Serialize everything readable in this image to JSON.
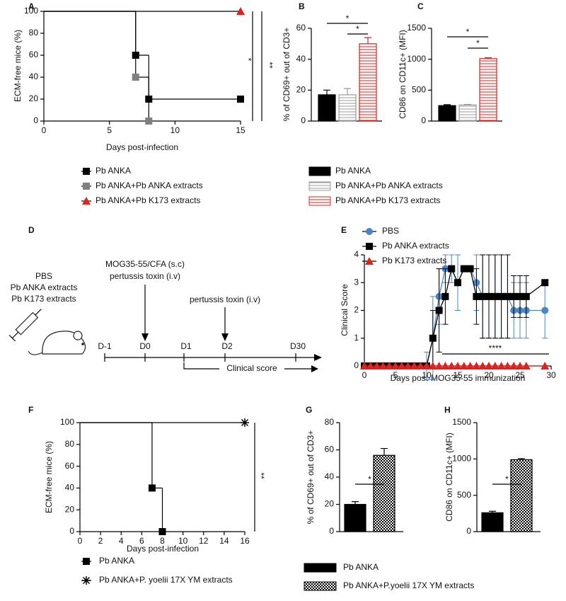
{
  "chart_data": [
    {
      "panel": "A",
      "type": "step",
      "xlabel": "Days post-infection",
      "ylabel": "ECM-free mice (%)",
      "xlim": [
        0,
        15
      ],
      "xticks": [
        0,
        5,
        10,
        15
      ],
      "ylim": [
        0,
        100
      ],
      "yticks": [
        0,
        20,
        40,
        60,
        80,
        100
      ],
      "series": [
        {
          "name": "Pb ANKA",
          "color": "#000000",
          "marker": "square",
          "x": [
            0,
            7,
            8,
            15
          ],
          "values": [
            100,
            60,
            20,
            20
          ]
        },
        {
          "name": "Pb ANKA+Pb ANKA extracts",
          "color": "#808080",
          "marker": "square",
          "x": [
            0,
            7,
            8
          ],
          "values": [
            100,
            40,
            0
          ]
        },
        {
          "name": "Pb ANKA+Pb K173 extracts",
          "color": "#e0211d",
          "marker": "triangle",
          "x": [
            0,
            15
          ],
          "values": [
            100,
            100
          ]
        }
      ],
      "annotations": [
        "*",
        "**"
      ]
    },
    {
      "panel": "B",
      "type": "bar",
      "ylabel": "% of CD69+ out of CD3+",
      "ylim": [
        0,
        60
      ],
      "yticks": [
        0,
        20,
        40,
        60
      ],
      "series": [
        {
          "name": "Pb ANKA",
          "color": "#000000",
          "pattern": "solid",
          "values": [
            17
          ],
          "errors": [
            3
          ]
        },
        {
          "name": "Pb ANKA+Pb ANKA extracts",
          "color": "#999999",
          "pattern": "hlines",
          "values": [
            17
          ],
          "errors": [
            4
          ]
        },
        {
          "name": "Pb ANKA+Pb K173 extracts",
          "color": "#e0211d",
          "pattern": "hlines",
          "values": [
            50
          ],
          "errors": [
            4
          ]
        }
      ],
      "annotations": [
        "*",
        "*"
      ]
    },
    {
      "panel": "C",
      "type": "bar",
      "ylabel": "CD86 on CD11c+ (MFI)",
      "ylim": [
        0,
        1500
      ],
      "yticks": [
        0,
        500,
        1000,
        1500
      ],
      "series": [
        {
          "color": "#000000",
          "pattern": "solid",
          "values": [
            250
          ],
          "errors": [
            15
          ]
        },
        {
          "color": "#999999",
          "pattern": "hlines",
          "values": [
            260
          ],
          "errors": [
            10
          ]
        },
        {
          "color": "#e0211d",
          "pattern": "hlines",
          "values": [
            1010
          ],
          "errors": [
            15
          ]
        }
      ],
      "annotations": [
        "*",
        "*"
      ]
    },
    {
      "panel": "E",
      "type": "line",
      "xlabel": "Days post-MOG35-55 immunization",
      "ylabel": "Clinical Score",
      "xlim": [
        0,
        30
      ],
      "xticks": [
        0,
        5,
        10,
        15,
        20,
        25,
        30
      ],
      "ylim": [
        0,
        4
      ],
      "yticks": [
        0,
        1,
        2,
        3,
        4
      ],
      "x": [
        0,
        1,
        2,
        3,
        4,
        5,
        6,
        7,
        8,
        9,
        10,
        11,
        12,
        13,
        14,
        15,
        16,
        17,
        18,
        19,
        20,
        21,
        22,
        23,
        24,
        25,
        26,
        29
      ],
      "series": [
        {
          "name": "PBS",
          "color": "#4a86c5",
          "marker": "circle",
          "values": [
            0,
            0,
            0,
            0,
            0,
            0,
            0,
            0,
            0,
            0,
            0,
            1,
            2.5,
            3.5,
            3.5,
            3,
            3.5,
            3.5,
            3,
            2.5,
            2.5,
            2.5,
            2.5,
            2.5,
            2,
            2,
            2,
            2
          ],
          "errors": [
            0,
            0,
            0,
            0,
            0,
            0,
            0,
            0,
            0,
            0,
            0.5,
            1.5,
            1,
            0.5,
            0.5,
            1,
            0,
            0,
            1,
            1.5,
            1.5,
            1.5,
            1.5,
            1.5,
            1,
            1,
            1,
            1
          ]
        },
        {
          "name": "Pb ANKA extracts",
          "color": "#000000",
          "marker": "square",
          "values": [
            0,
            0,
            0,
            0,
            0,
            0,
            0,
            0,
            0,
            0,
            0,
            1,
            2,
            2.5,
            3.5,
            3,
            3.5,
            3.5,
            2.5,
            2.5,
            2.5,
            2.5,
            2.5,
            2.5,
            2.5,
            2.5,
            2.5,
            3
          ],
          "errors": [
            0,
            0,
            0,
            0,
            0,
            0,
            0,
            0,
            0,
            0,
            0,
            1,
            1.5,
            1,
            0,
            0,
            0,
            0,
            1,
            1.5,
            1.5,
            1.5,
            1.5,
            1.5,
            0.75,
            0.75,
            0.75,
            0
          ]
        },
        {
          "name": "Pb K173 extracts",
          "color": "#e0211d",
          "marker": "triangle",
          "values": [
            0,
            0,
            0,
            0,
            0,
            0,
            0,
            0,
            0,
            0,
            0,
            0,
            0,
            0,
            0,
            0,
            0,
            0,
            0,
            0,
            0,
            0,
            0,
            0,
            0,
            0,
            0,
            0
          ]
        }
      ],
      "annotations": [
        "****"
      ]
    },
    {
      "panel": "F",
      "type": "step",
      "xlabel": "Days post-infection",
      "ylabel": "ECM-free mice (%)",
      "xlim": [
        0,
        16
      ],
      "xticks": [
        0,
        2,
        4,
        6,
        8,
        10,
        12,
        14,
        16
      ],
      "ylim": [
        0,
        100
      ],
      "yticks": [
        0,
        20,
        40,
        60,
        80,
        100
      ],
      "series": [
        {
          "name": "Pb ANKA",
          "color": "#000000",
          "marker": "square",
          "x": [
            0,
            7,
            8
          ],
          "values": [
            100,
            40,
            0
          ]
        },
        {
          "name": "Pb ANKA+P. yoelii 17X YM extracts",
          "color": "#000000",
          "marker": "asterisk",
          "x": [
            0,
            16
          ],
          "values": [
            100,
            100
          ]
        }
      ],
      "annotations": [
        "**"
      ]
    },
    {
      "panel": "G",
      "type": "bar",
      "ylabel": "% of CD69+ out of CD3+",
      "ylim": [
        0,
        80
      ],
      "yticks": [
        0,
        20,
        40,
        60,
        80
      ],
      "series": [
        {
          "name": "Pb ANKA",
          "color": "#000000",
          "pattern": "solid",
          "values": [
            20
          ],
          "errors": [
            2
          ]
        },
        {
          "name": "Pb ANKA+P.yoelii 17X YM extracts",
          "color": "#000000",
          "pattern": "checker",
          "values": [
            56
          ],
          "errors": [
            5
          ]
        }
      ],
      "annotations": [
        "*"
      ]
    },
    {
      "panel": "H",
      "type": "bar",
      "ylabel": "CD86 on CD11c+ (MFI)",
      "ylim": [
        0,
        1500
      ],
      "yticks": [
        0,
        500,
        1000,
        1500
      ],
      "series": [
        {
          "color": "#000000",
          "pattern": "solid",
          "values": [
            260
          ],
          "errors": [
            20
          ]
        },
        {
          "color": "#000000",
          "pattern": "checker",
          "values": [
            990
          ],
          "errors": [
            15
          ]
        }
      ],
      "annotations": [
        "*"
      ]
    }
  ],
  "diagram": {
    "panel": "D",
    "groups": [
      "PBS",
      "Pb ANKA extracts",
      "Pb K173 extracts"
    ],
    "timeline": [
      "D-1",
      "D0",
      "D1",
      "D2",
      "D30"
    ],
    "day0": [
      "MOG35-55/CFA (s.c)",
      "pertussis toxin (i.v)"
    ],
    "day2": "pertussis toxin (i.v)",
    "readout": "Clinical score"
  }
}
